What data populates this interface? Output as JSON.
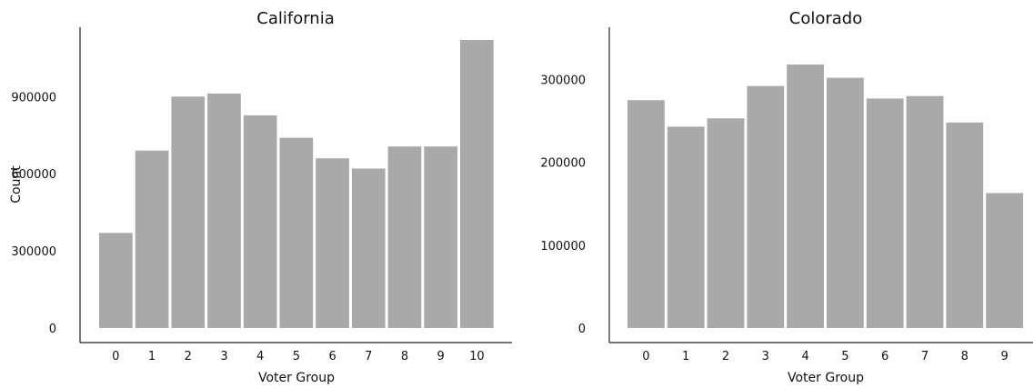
{
  "chart_data": [
    {
      "type": "bar",
      "title": "California",
      "xlabel": "Voter Group",
      "ylabel": "Count",
      "categories": [
        "0",
        "1",
        "2",
        "3",
        "4",
        "5",
        "6",
        "7",
        "8",
        "9",
        "10"
      ],
      "values": [
        370000,
        690000,
        900000,
        912000,
        827000,
        740000,
        660000,
        620000,
        706000,
        706000,
        1120000
      ],
      "yticks": [
        0,
        300000,
        600000,
        900000
      ],
      "ylim": [
        0,
        1150000
      ],
      "bar_color": "#a9a9a9",
      "grid": false
    },
    {
      "type": "bar",
      "title": "Colorado",
      "xlabel": "Voter Group",
      "ylabel": "",
      "categories": [
        "0",
        "1",
        "2",
        "3",
        "4",
        "5",
        "6",
        "7",
        "8",
        "9"
      ],
      "values": [
        275000,
        243000,
        253000,
        292000,
        318000,
        302000,
        277000,
        280000,
        248000,
        163000
      ],
      "yticks": [
        0,
        100000,
        200000,
        300000
      ],
      "ylim": [
        0,
        320000
      ],
      "bar_color": "#a9a9a9",
      "grid": false
    }
  ]
}
